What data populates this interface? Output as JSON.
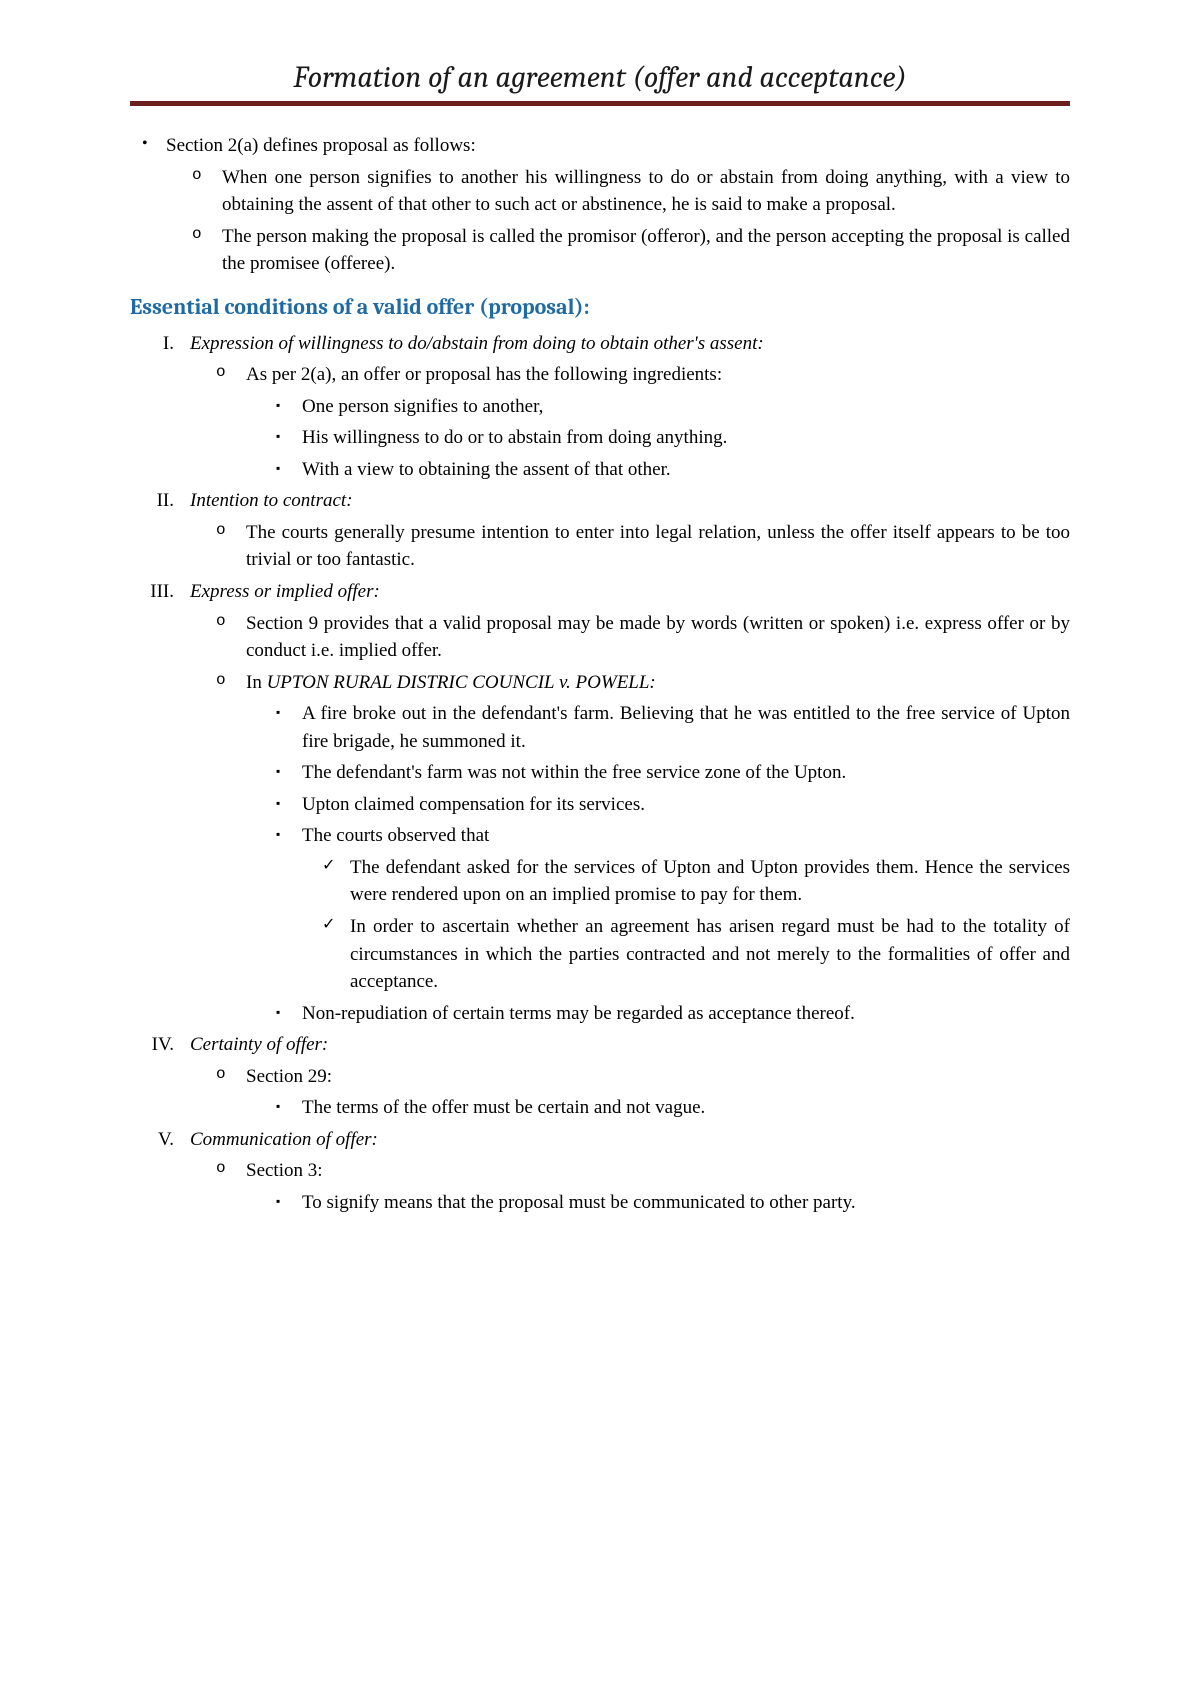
{
  "title": "Formation of an agreement (offer and acceptance)",
  "colors": {
    "rule": "#6b1f1f",
    "heading": "#1f6aa5",
    "text": "#000000",
    "background": "#ffffff"
  },
  "intro": {
    "bullet": "Section 2(a) defines proposal as follows:",
    "sub": [
      "When one person signifies to another his willingness to do or abstain from doing anything, with a view to obtaining the assent of that other to such act or abstinence, he is said to make a proposal.",
      "The person making the proposal is called the promisor (offeror), and the person accepting the proposal is called the promisee (offeree)."
    ]
  },
  "heading": "Essential conditions of a valid offer (proposal):",
  "items": [
    {
      "num": "I.",
      "title": "Expression of willingness to do/abstain from doing to obtain other's assent:",
      "circles": [
        {
          "text": "As per 2(a), an offer or proposal has the following ingredients:",
          "squares": [
            "One person signifies to another,",
            "His willingness to do or to abstain from doing anything.",
            "With a view to obtaining the assent of that other."
          ]
        }
      ]
    },
    {
      "num": "II.",
      "title": "Intention to contract:",
      "circles": [
        {
          "text": "The courts generally presume intention to enter into legal relation, unless the offer itself appears to be too trivial or too fantastic."
        }
      ]
    },
    {
      "num": "III.",
      "title": "Express or implied offer:",
      "circles": [
        {
          "text": "Section 9 provides that a valid proposal may be made by words (written or spoken) i.e. express offer or by conduct i.e. implied offer."
        },
        {
          "prefix": "In ",
          "case": "UPTON RURAL DISTRIC COUNCIL v. POWELL:",
          "squares": [
            "A fire broke out in the defendant's farm. Believing that he was entitled to the free service of Upton fire brigade, he summoned it.",
            "The defendant's farm was not within the free service zone of the Upton.",
            "Upton claimed compensation for its services.",
            "The courts observed that"
          ],
          "checks": [
            "The defendant asked for the services of Upton and Upton provides them. Hence the services were rendered upon on an implied promise to pay for them.",
            "In order to ascertain whether an agreement has arisen regard must be had to the totality of circumstances in which the parties contracted and not merely to the formalities of offer and acceptance."
          ],
          "squares_after": [
            "Non-repudiation of certain terms may be regarded as acceptance thereof."
          ]
        }
      ]
    },
    {
      "num": "IV.",
      "title": "Certainty of offer:",
      "circles": [
        {
          "text": "Section 29:",
          "squares": [
            "The terms of the offer must be certain and not vague."
          ]
        }
      ]
    },
    {
      "num": "V.",
      "title": "Communication of offer:",
      "circles": [
        {
          "text": "Section 3:",
          "squares": [
            "To signify means that the proposal must be communicated to other party."
          ]
        }
      ]
    }
  ]
}
